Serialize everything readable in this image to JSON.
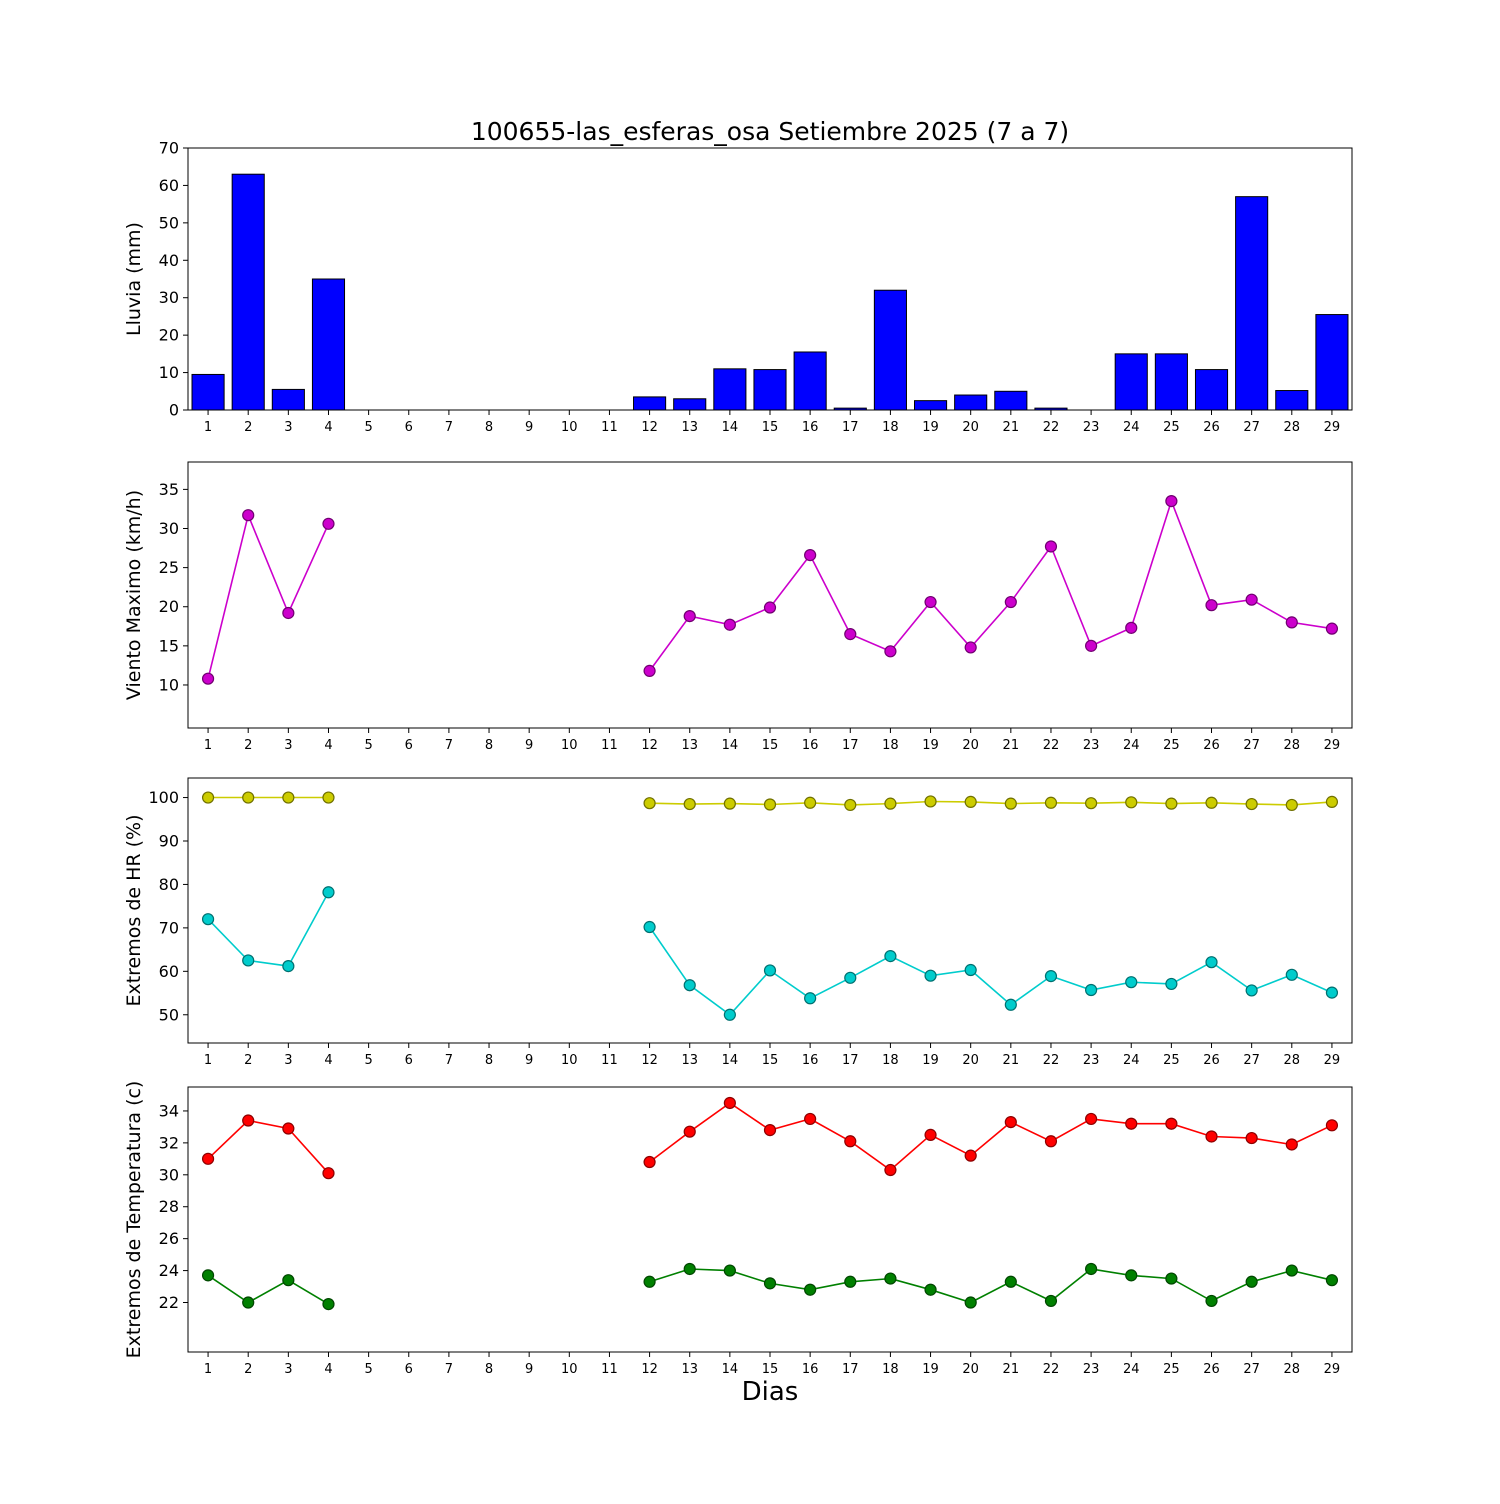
{
  "title": "100655-las_esferas_osa Setiembre 2025  (7 a 7)",
  "xlabel": "Dias",
  "days": [
    1,
    2,
    3,
    4,
    5,
    6,
    7,
    8,
    9,
    10,
    11,
    12,
    13,
    14,
    15,
    16,
    17,
    18,
    19,
    20,
    21,
    22,
    23,
    24,
    25,
    26,
    27,
    28,
    29
  ],
  "chart_data": [
    {
      "id": "lluvia",
      "type": "bar",
      "ylabel": "Lluvia (mm)",
      "ylim": [
        0,
        70
      ],
      "yticks": [
        0,
        10,
        20,
        30,
        40,
        50,
        60,
        70
      ],
      "color": "#0000ff",
      "values": [
        9.5,
        63,
        5.5,
        35,
        0,
        0,
        0,
        0,
        0,
        0,
        0,
        3.5,
        3,
        11,
        10.8,
        15.5,
        0.5,
        32,
        2.5,
        4,
        5,
        0.5,
        0,
        15,
        15,
        10.8,
        57,
        5.2,
        25.5
      ]
    },
    {
      "id": "viento",
      "type": "line",
      "ylabel": "Viento Maximo (km/h)",
      "ylim": [
        4.5,
        38.5
      ],
      "yticks": [
        10,
        15,
        20,
        25,
        30,
        35
      ],
      "series": [
        {
          "name": "viento-maximo",
          "color": "#cc00cc",
          "values": [
            10.8,
            31.7,
            19.2,
            30.6,
            null,
            null,
            null,
            null,
            null,
            null,
            null,
            11.8,
            18.8,
            17.7,
            19.9,
            26.6,
            16.5,
            14.3,
            20.6,
            14.8,
            20.6,
            27.7,
            15.0,
            17.3,
            33.5,
            20.2,
            20.9,
            18.0,
            17.2
          ]
        }
      ]
    },
    {
      "id": "hr",
      "type": "line",
      "ylabel": "Extremos de HR (%)",
      "ylim": [
        43.5,
        104.5
      ],
      "yticks": [
        50,
        60,
        70,
        80,
        90,
        100
      ],
      "series": [
        {
          "name": "hr-maxima",
          "color": "#cccc00",
          "values": [
            100,
            100,
            100,
            100,
            null,
            null,
            null,
            null,
            null,
            null,
            null,
            98.7,
            98.5,
            98.6,
            98.4,
            98.8,
            98.3,
            98.6,
            99.1,
            99.0,
            98.6,
            98.8,
            98.7,
            98.9,
            98.6,
            98.8,
            98.5,
            98.3,
            99.0
          ]
        },
        {
          "name": "hr-minima",
          "color": "#00cccc",
          "values": [
            72,
            62.5,
            61.2,
            78.2,
            null,
            null,
            null,
            null,
            null,
            null,
            null,
            70.2,
            56.8,
            50.0,
            60.2,
            53.8,
            58.5,
            63.5,
            59.0,
            60.3,
            52.3,
            58.9,
            55.7,
            57.5,
            57.1,
            62.1,
            55.6,
            59.2,
            55.1
          ]
        }
      ]
    },
    {
      "id": "temperatura",
      "type": "line",
      "ylabel": "Extremos de Temperatura (c)",
      "ylim": [
        18.9,
        35.5
      ],
      "yticks": [
        22,
        24,
        26,
        28,
        30,
        32,
        34
      ],
      "series": [
        {
          "name": "temperatura-maxima",
          "color": "#ff0000",
          "values": [
            31.0,
            33.4,
            32.9,
            30.1,
            null,
            null,
            null,
            null,
            null,
            null,
            null,
            30.8,
            32.7,
            34.5,
            32.8,
            33.5,
            32.1,
            30.3,
            32.5,
            31.2,
            33.3,
            32.1,
            33.5,
            33.2,
            33.2,
            32.4,
            32.3,
            31.9,
            33.1
          ]
        },
        {
          "name": "temperatura-minima",
          "color": "#008000",
          "values": [
            23.7,
            22.0,
            23.4,
            21.9,
            null,
            null,
            null,
            null,
            null,
            null,
            null,
            23.3,
            24.1,
            24.0,
            23.2,
            22.8,
            23.3,
            23.5,
            22.8,
            22.0,
            23.3,
            22.1,
            24.1,
            23.7,
            23.5,
            22.1,
            23.3,
            24.0,
            23.4
          ]
        }
      ]
    }
  ]
}
